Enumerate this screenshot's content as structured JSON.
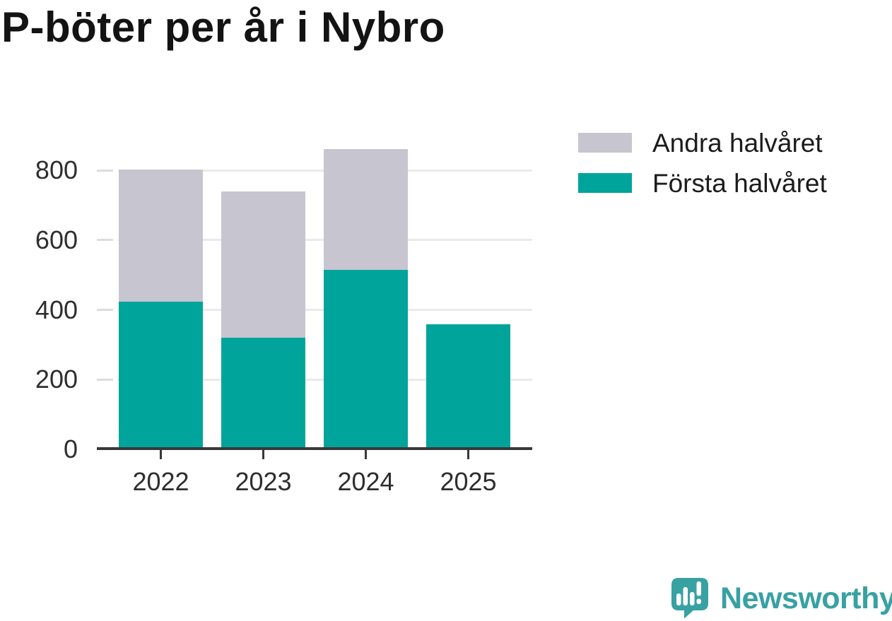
{
  "title": "P-böter per år i Nybro",
  "chart_data": {
    "type": "bar",
    "stacked": true,
    "title": "P-böter per år i Nybro",
    "categories": [
      "2022",
      "2023",
      "2024",
      "2025"
    ],
    "series": [
      {
        "name": "Första halvåret",
        "color": "#00a49a",
        "values": [
          424,
          321,
          515,
          359
        ]
      },
      {
        "name": "Andra halvåret",
        "color": "#c7c5d0",
        "values": [
          378,
          419,
          346,
          null
        ]
      }
    ],
    "stack_totals": [
      802,
      740,
      861,
      359
    ],
    "xlabel": "",
    "ylabel": "",
    "ylim": [
      0,
      880
    ],
    "yticks": [
      0,
      200,
      400,
      600,
      800
    ],
    "grid": "horizontal",
    "legend_position": "upper-right"
  },
  "legend": {
    "items": [
      {
        "label": "Andra halvåret",
        "color": "#c7c5d0"
      },
      {
        "label": "Första halvåret",
        "color": "#00a49a"
      }
    ]
  },
  "branding": {
    "logo_text": "Newsworthy",
    "logo_icon": "speech-bubble-bar-chart-exclamation"
  },
  "colors": {
    "background": "#ffffff",
    "title_text": "#131313",
    "axis_line": "#383838",
    "gridline": "#eaeaea",
    "tick_stub": "#dcdcdc",
    "tick_label": "#2e2e2e",
    "legend_text": "#1c1c1c",
    "first_half": "#00a49a",
    "second_half": "#c7c5d0",
    "logo_teal": "#38a1a2"
  }
}
